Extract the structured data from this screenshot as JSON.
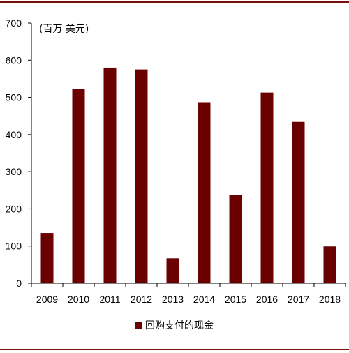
{
  "chart_data": {
    "type": "bar",
    "unit_label": "(百万 美元)",
    "categories": [
      "2009",
      "2010",
      "2011",
      "2012",
      "2013",
      "2014",
      "2015",
      "2016",
      "2017",
      "2018"
    ],
    "series": [
      {
        "name": "回购支付的现金",
        "color": "#6b0000",
        "values": [
          135,
          523,
          580,
          575,
          67,
          487,
          237,
          513,
          434,
          99
        ]
      }
    ],
    "ylim": [
      0,
      700
    ],
    "yticks": [
      "0",
      "100",
      "200",
      "300",
      "400",
      "500",
      "600",
      "700"
    ],
    "grid": false,
    "legend_position": "bottom-center"
  }
}
